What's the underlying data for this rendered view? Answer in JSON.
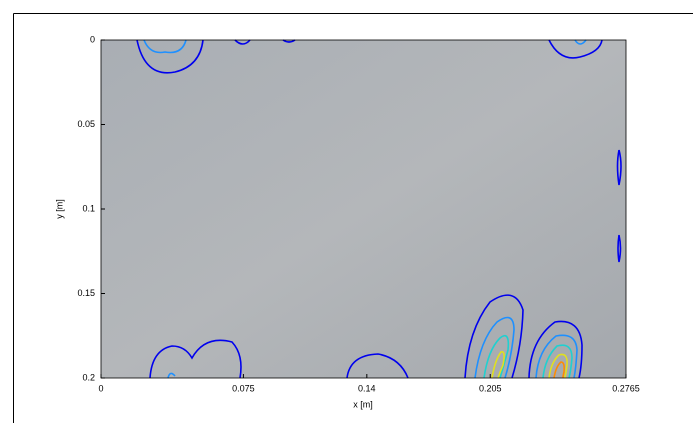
{
  "chart_data": {
    "type": "contour",
    "x_label": "x [m]",
    "y_label": "y [m]",
    "xlim": [
      0,
      0.2765
    ],
    "xticks": [
      0,
      0.075,
      0.14,
      0.205,
      0.2765
    ],
    "ylim": [
      0,
      0.2
    ],
    "yticks": [
      0,
      0.05,
      0.1,
      0.15,
      0.2
    ],
    "y_direction": "reverse"
  }
}
